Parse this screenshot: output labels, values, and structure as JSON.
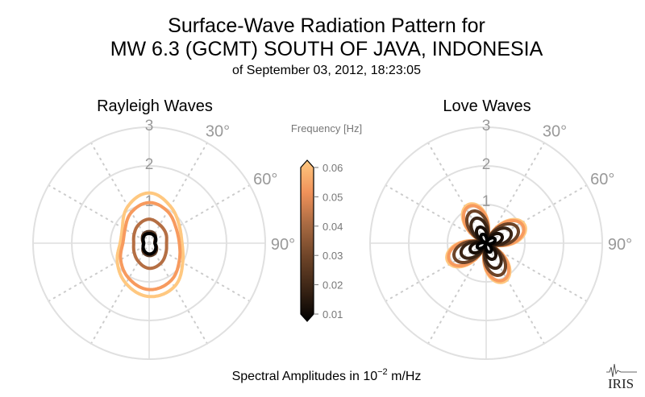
{
  "chart_data": {
    "type": "polar-line",
    "title_line1": "Surface-Wave Radiation Pattern for",
    "title_line2": "MW 6.3 (GCMT) SOUTH OF JAVA, INDONESIA",
    "subtitle": "of September 03, 2012, 18:23:05",
    "caption_prefix": "Spectral Amplitudes in 10",
    "caption_exp": "−2",
    "caption_suffix": " m/Hz",
    "logo_text": "IRIS",
    "radial_ticks": [
      "1",
      "2",
      "3"
    ],
    "radial_range": [
      0,
      3
    ],
    "angle_ticks": [
      "30°",
      "60°",
      "90°"
    ],
    "colorbar": {
      "label": "Frequency [Hz]",
      "ticks": [
        "0.06",
        "0.05",
        "0.04",
        "0.03",
        "0.02",
        "0.01"
      ],
      "range": [
        0.01,
        0.06
      ],
      "colors": [
        "#000000",
        "#3a2415",
        "#6e4428",
        "#a86a42",
        "#f0925a",
        "#ffc880"
      ]
    },
    "panels": [
      {
        "title": "Rayleigh Waves",
        "azimuths_deg": [
          0,
          30,
          60,
          90,
          120,
          150,
          180,
          210,
          240,
          270,
          300,
          330
        ],
        "series": [
          {
            "frequency": 0.06,
            "color": "#ffc880",
            "amplitude": [
              1.3,
              1.1,
              0.9,
              0.85,
              1.0,
              1.3,
              1.38,
              1.2,
              0.95,
              0.75,
              0.8,
              1.1
            ]
          },
          {
            "frequency": 0.05,
            "color": "#f79a5e",
            "amplitude": [
              1.05,
              0.95,
              0.8,
              0.78,
              0.9,
              1.12,
              1.2,
              1.05,
              0.85,
              0.68,
              0.72,
              0.92
            ]
          },
          {
            "frequency": 0.035,
            "color": "#b56f44",
            "amplitude": [
              0.62,
              0.55,
              0.5,
              0.45,
              0.5,
              0.6,
              0.65,
              0.55,
              0.45,
              0.4,
              0.45,
              0.55
            ]
          },
          {
            "frequency": 0.02,
            "color": "#5a3a25",
            "amplitude": [
              0.3,
              0.28,
              0.18,
              0.15,
              0.22,
              0.3,
              0.32,
              0.28,
              0.18,
              0.15,
              0.2,
              0.28
            ]
          },
          {
            "frequency": 0.01,
            "color": "#000000",
            "amplitude": [
              0.25,
              0.24,
              0.2,
              0.15,
              0.2,
              0.26,
              0.28,
              0.24,
              0.18,
              0.14,
              0.18,
              0.24
            ]
          }
        ]
      },
      {
        "title": "Love Waves",
        "pattern": "four-lobe",
        "lobe_azimuths_deg": [
          65,
          155,
          245,
          335
        ],
        "series": [
          {
            "frequency": 0.06,
            "color": "#ffc880",
            "peak_amplitude": 1.1
          },
          {
            "frequency": 0.05,
            "color": "#f79a5e",
            "peak_amplitude": 1.05
          },
          {
            "frequency": 0.04,
            "color": "#6e4428",
            "peak_amplitude": 0.9
          },
          {
            "frequency": 0.03,
            "color": "#3a2415",
            "peak_amplitude": 0.7
          },
          {
            "frequency": 0.02,
            "color": "#1a0f08",
            "peak_amplitude": 0.45
          },
          {
            "frequency": 0.01,
            "color": "#000000",
            "peak_amplitude": 0.25
          }
        ]
      }
    ]
  }
}
